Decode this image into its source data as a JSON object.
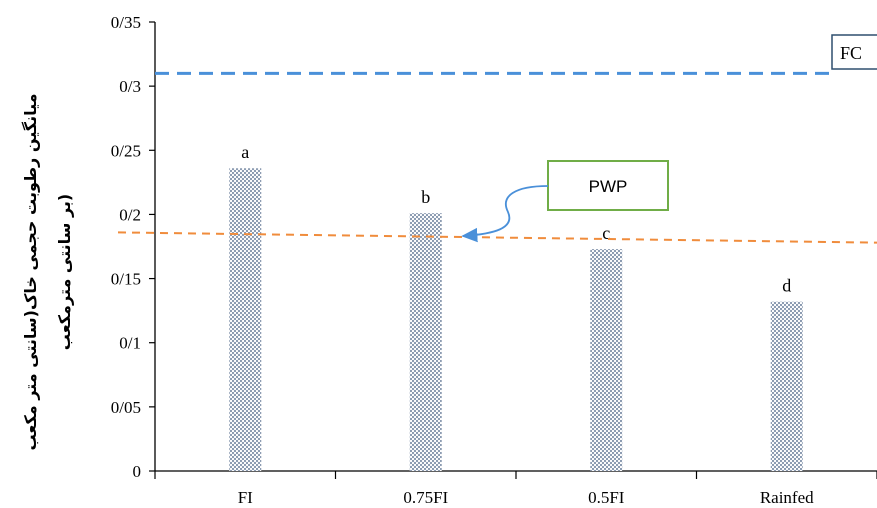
{
  "chart_data": {
    "type": "bar",
    "categories": [
      "FI",
      "0.75FI",
      "0.5FI",
      "Rainfed"
    ],
    "values": [
      0.236,
      0.201,
      0.173,
      0.132
    ],
    "significance_letters": [
      "a",
      "b",
      "c",
      "d"
    ],
    "ylabel_line1": "میانگین رطوبت حجمی خاک(سانتی متر مکعب",
    "ylabel_line2": "بر سانتی مترمکعب)",
    "ylim": [
      0,
      0.35
    ],
    "yticks": [
      "0",
      "0/05",
      "0/1",
      "0/15",
      "0/2",
      "0/25",
      "0/3",
      "0/35"
    ],
    "ytick_values": [
      0,
      0.05,
      0.1,
      0.15,
      0.2,
      0.25,
      0.3,
      0.35
    ],
    "reference_lines": [
      {
        "label": "FC",
        "value": 0.31,
        "value_end": 0.31,
        "color": "#4a90d9",
        "style": "dashed"
      },
      {
        "label": "PWP",
        "value": 0.186,
        "value_end": 0.178,
        "color": "#f08c3c",
        "style": "dashed"
      }
    ],
    "bar_pattern_color": "#8596ad",
    "pwp_box_border": "#70ad47",
    "grid": false
  }
}
